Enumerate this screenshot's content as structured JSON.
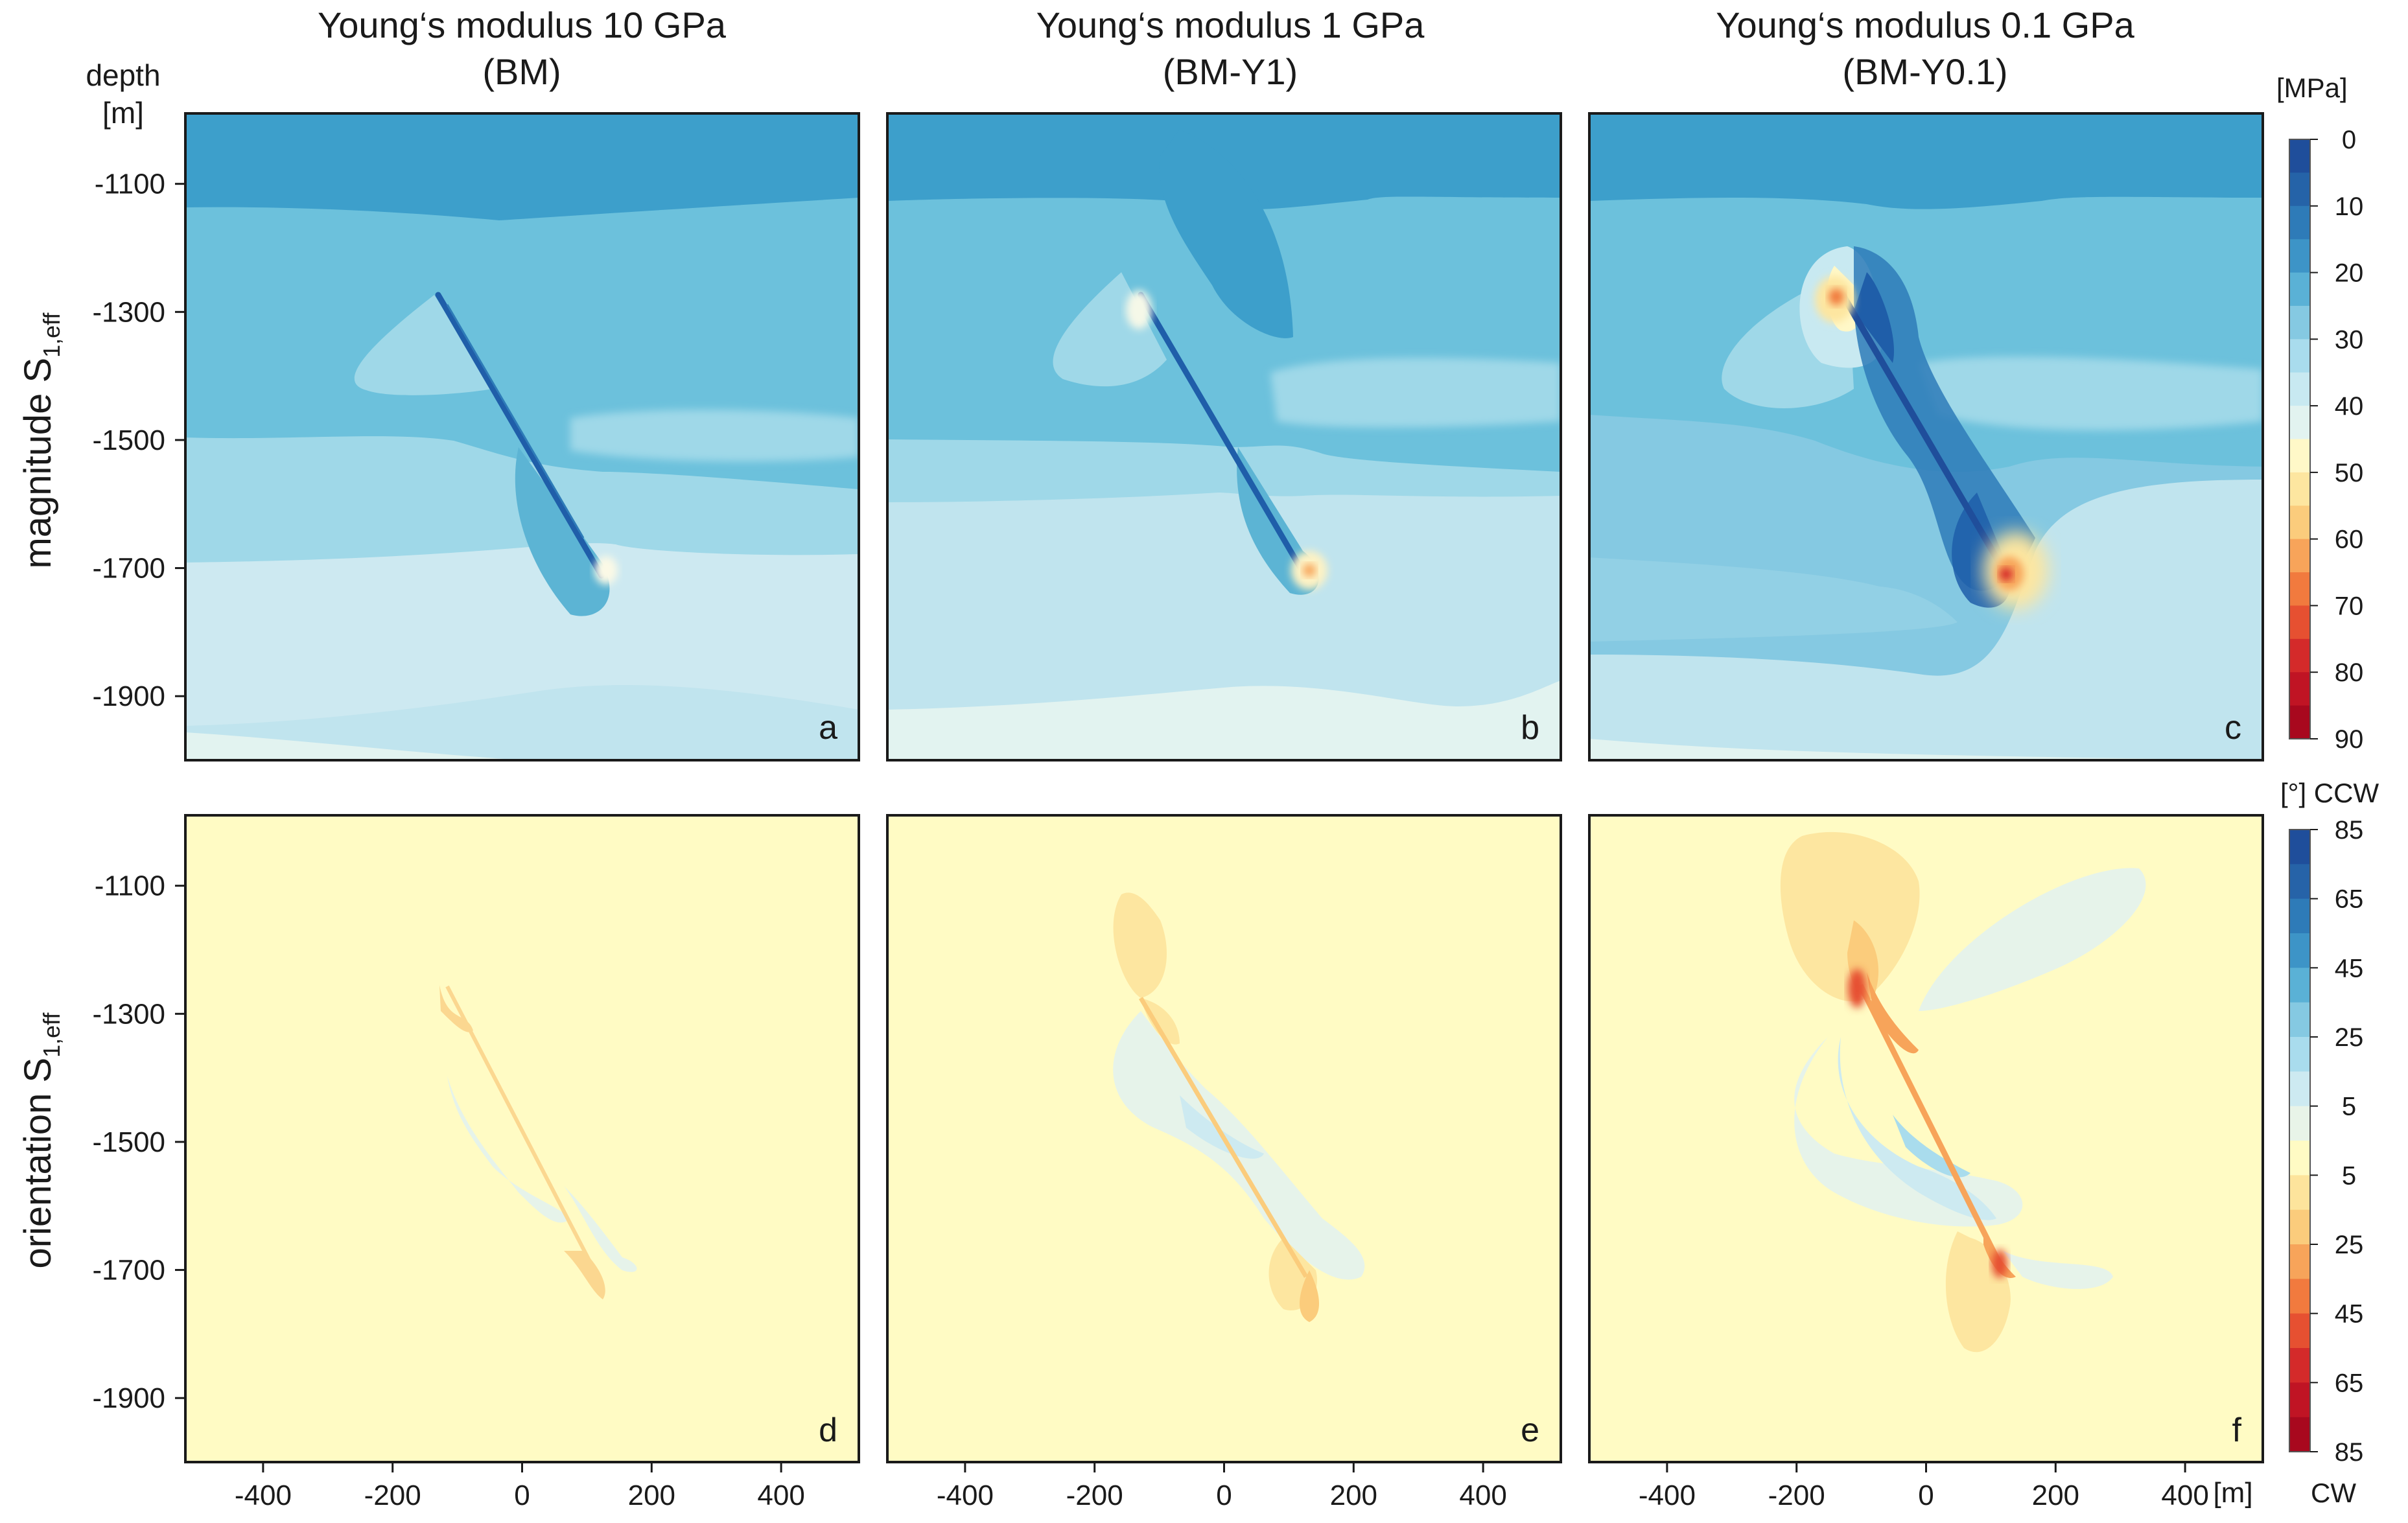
{
  "chart_data": {
    "type": "heatmap",
    "columns": [
      {
        "title": "Young‘s modulus 10 GPa",
        "subtitle": "(BM)"
      },
      {
        "title": "Young‘s modulus 1 GPa",
        "subtitle": "(BM-Y1)"
      },
      {
        "title": "Young‘s modulus 0.1 GPa",
        "subtitle": "(BM-Y0.1)"
      }
    ],
    "rows": [
      {
        "label_main": "magnitude S",
        "label_sub": "1,eff"
      },
      {
        "label_main": "orientation S",
        "label_sub": "1,eff"
      }
    ],
    "panel_letters": [
      "a",
      "b",
      "c",
      "d",
      "e",
      "f"
    ],
    "y_axis": {
      "label_line1": "depth",
      "label_line2": "[m]",
      "ticks": [
        -1100,
        -1300,
        -1500,
        -1700,
        -1900
      ],
      "range": [
        -2000,
        -990
      ]
    },
    "x_axis": {
      "ticks": [
        -400,
        -200,
        0,
        200,
        400
      ],
      "range": [
        -520,
        520
      ],
      "unit": "[m]"
    },
    "fault": {
      "top": [
        -130,
        -1280
      ],
      "bottom": [
        120,
        -1710
      ]
    },
    "colorbar_magnitude": {
      "unit": "[MPa]",
      "ticks": [
        0,
        10,
        20,
        30,
        40,
        50,
        60,
        70,
        80,
        90
      ],
      "colors": [
        "#1f4e9b",
        "#2563a8",
        "#2e7bb8",
        "#3d94c7",
        "#5ab1d6",
        "#85c9e2",
        "#a9dced",
        "#c8e9f1",
        "#e2f3f0",
        "#fff8c8",
        "#fde6a0",
        "#fbcc7c",
        "#f7a45a",
        "#f17a3e",
        "#e65031",
        "#d42a2a",
        "#c01424",
        "#a8081e"
      ]
    },
    "colorbar_orientation": {
      "unit_top": "[°] CCW",
      "unit_bottom": "CW",
      "ticks": [
        "85",
        "65",
        "45",
        "25",
        "5",
        "5",
        "25",
        "45",
        "65",
        "85"
      ],
      "colors": [
        "#1f4e9b",
        "#2663a8",
        "#2e7bb8",
        "#3d94c7",
        "#5ab1d6",
        "#85c9e2",
        "#a9dced",
        "#cdeaf1",
        "#e8f4e8",
        "#fffbc4",
        "#fde49c",
        "#fbcc7c",
        "#f7a45a",
        "#f17a3e",
        "#e65031",
        "#d42a2a",
        "#c01424",
        "#a8081e"
      ]
    }
  }
}
